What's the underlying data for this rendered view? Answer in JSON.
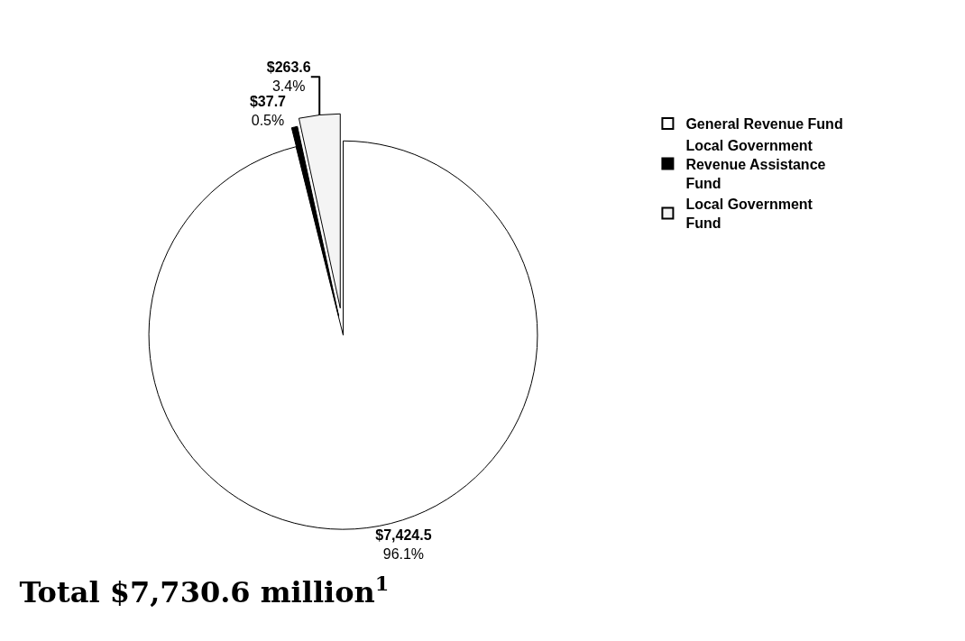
{
  "chart_data": {
    "type": "pie",
    "title": "Total $7,730.6 million$^{1}$",
    "categories": [
      "General Revenue Fund",
      "Local Government Revenue Assistance Fund",
      "Local Government Fund"
    ],
    "values": [
      7424.5,
      37.7,
      263.6
    ],
    "value_labels": [
      "$7,424.5\n96.1%",
      "$37.7\n0.5%",
      "$263.6\n3.4%"
    ],
    "colors": [
      "#ffffff",
      "#000000",
      "#f4f4f4"
    ],
    "legend": "top right"
  }
}
